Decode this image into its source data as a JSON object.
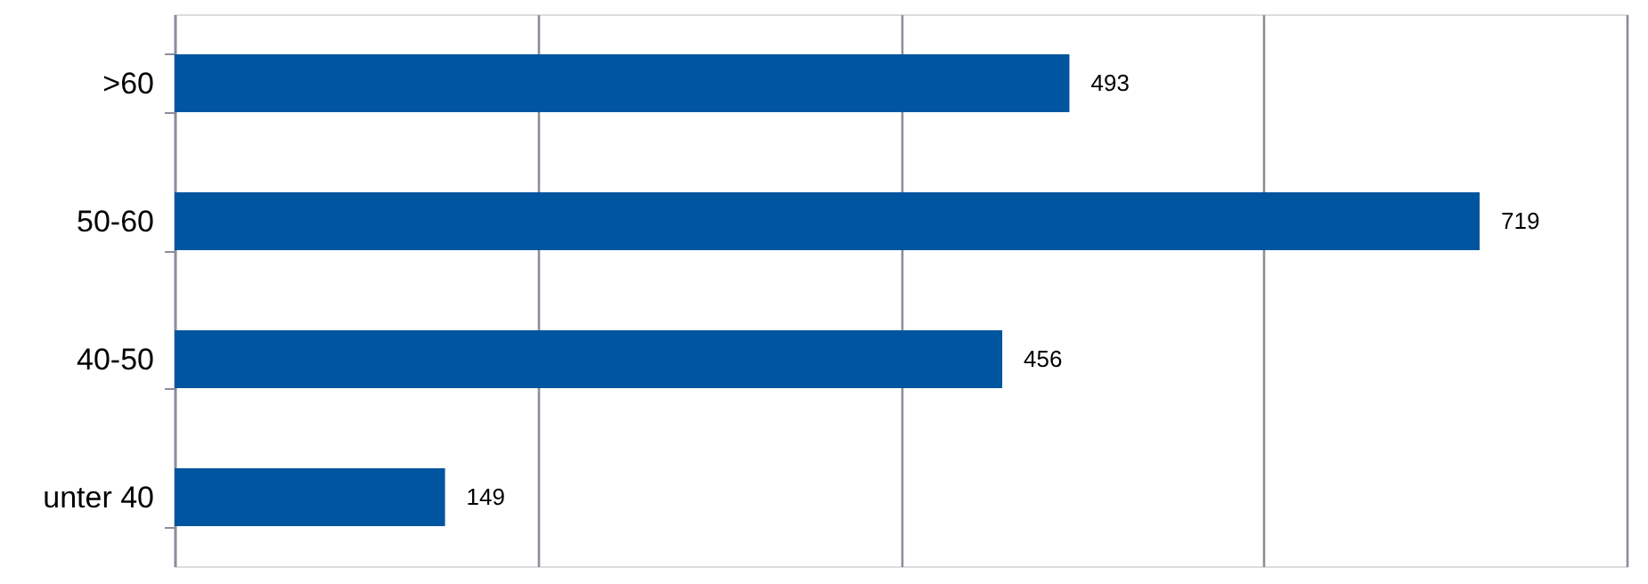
{
  "chart_data": {
    "type": "bar",
    "orientation": "horizontal",
    "categories": [
      ">60",
      "50-60",
      "40-50",
      "unter 40"
    ],
    "values": [
      493,
      719,
      456,
      149
    ],
    "color": "#0055a0",
    "xlim": [
      0,
      800
    ],
    "xticks": [
      {
        "value": 0,
        "label": null
      },
      {
        "value": 200,
        "label": null
      },
      {
        "value": 400,
        "label": null
      },
      {
        "value": 600,
        "label": null
      },
      {
        "value": 800,
        "label": null
      }
    ],
    "grid": "x",
    "tick_labels": "y",
    "data_labels": true
  }
}
